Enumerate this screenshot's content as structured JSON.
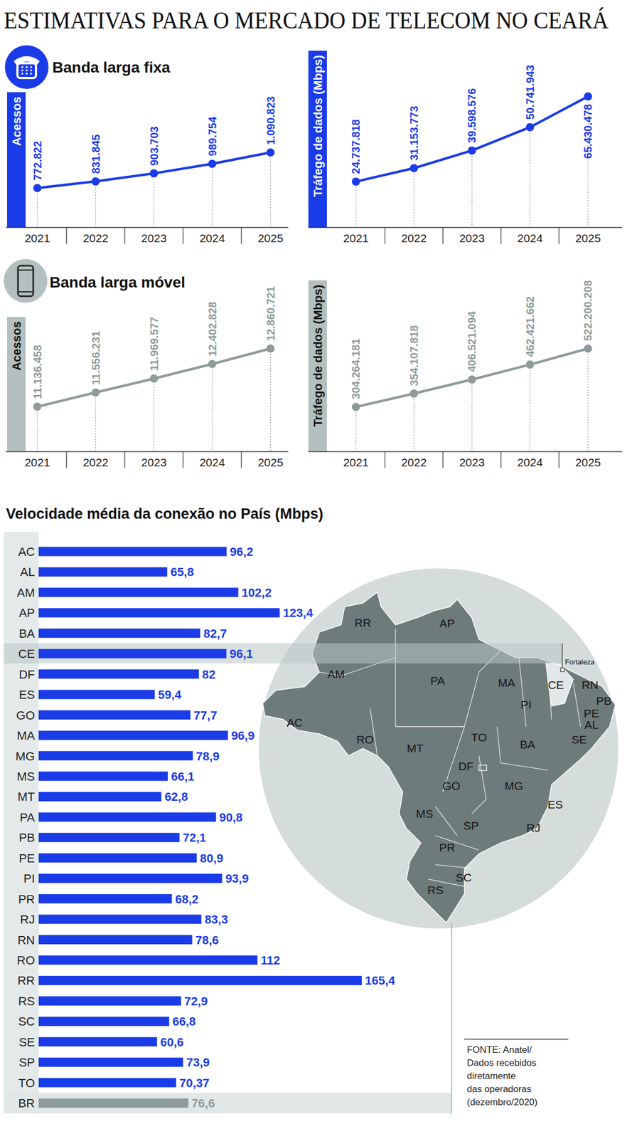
{
  "title": "ESTIMATIVAS PARA O MERCADO DE TELECOM NO CEARÁ",
  "sections": [
    {
      "title": "Banda larga fixa"
    },
    {
      "title": "Banda larga móvel"
    }
  ],
  "chart_data": [
    {
      "type": "line",
      "ylabel": "Acessos",
      "categories": [
        "2021",
        "2022",
        "2023",
        "2024",
        "2025"
      ],
      "values": [
        772822,
        831845,
        903703,
        989754,
        1090823
      ],
      "value_labels": [
        "772.822",
        "831.845",
        "903.703",
        "989.754",
        "1.090.823"
      ],
      "color": "#1a3be8",
      "ylim": [
        420000,
        1630000
      ],
      "data_labels": true,
      "tick_labels": "x",
      "marker": "circle"
    },
    {
      "type": "line",
      "ylabel": "Tráfego de dados (Mbps)",
      "categories": [
        "2021",
        "2022",
        "2023",
        "2024",
        "2025"
      ],
      "values": [
        24737818,
        31153773,
        39598576,
        50741943,
        65430478
      ],
      "value_labels": [
        "24.737.818",
        "31.153.773",
        "39.598.576",
        "50.741.943",
        "65.430.478"
      ],
      "color": "#1a3be8",
      "ylim": [
        2800000,
        87300000
      ],
      "data_labels": true,
      "tick_labels": "x",
      "marker": "circle"
    },
    {
      "type": "line",
      "ylabel": "Acessos",
      "categories": [
        "2021",
        "2022",
        "2023",
        "2024",
        "2025"
      ],
      "values": [
        11136458,
        11556231,
        11969577,
        12402828,
        12860721
      ],
      "value_labels": [
        "11.136.458",
        "11.556.231",
        "11.969.577",
        "12.402.828",
        "12.860.721"
      ],
      "color": "#8d9b9a",
      "ylim": [
        9800000,
        13800000
      ],
      "data_labels": true,
      "tick_labels": "x",
      "marker": "circle"
    },
    {
      "type": "line",
      "ylabel": "Tráfego de dados (Mbps)",
      "categories": [
        "2021",
        "2022",
        "2023",
        "2024",
        "2025"
      ],
      "values": [
        304264181,
        354107818,
        406521094,
        462421662,
        522200208
      ],
      "value_labels": [
        "304.264.181",
        "354.107.818",
        "406.521.094",
        "462.421.662",
        "522.200.208"
      ],
      "color": "#8d9b9a",
      "ylim": [
        137000000,
        777000000
      ],
      "data_labels": true,
      "tick_labels": "x",
      "marker": "circle"
    },
    {
      "type": "bar",
      "title": "Velocidade média da conexão no País (Mbps)",
      "orientation": "horizontal",
      "categories": [
        "AC",
        "AL",
        "AM",
        "AP",
        "BA",
        "CE",
        "DF",
        "ES",
        "GO",
        "MA",
        "MG",
        "MS",
        "MT",
        "PA",
        "PB",
        "PE",
        "PI",
        "PR",
        "RJ",
        "RN",
        "RO",
        "RR",
        "RS",
        "SC",
        "SE",
        "SP",
        "TO",
        "BR"
      ],
      "values": [
        96.2,
        65.8,
        102.2,
        123.4,
        82.7,
        96.1,
        82,
        59.4,
        77.7,
        96.9,
        78.9,
        66.1,
        62.8,
        90.8,
        72.1,
        80.9,
        93.9,
        68.2,
        83.3,
        78.6,
        112,
        165.4,
        72.9,
        66.8,
        60.6,
        73.9,
        70.37,
        76.6
      ],
      "value_labels": [
        "96,2",
        "65,8",
        "102,2",
        "123,4",
        "82,7",
        "96,1",
        "82",
        "59,4",
        "77,7",
        "96,9",
        "78,9",
        "66,1",
        "62,8",
        "90,8",
        "72,1",
        "80,9",
        "93,9",
        "68,2",
        "83,3",
        "78,6",
        "112",
        "165,4",
        "72,9",
        "66,8",
        "60,6",
        "73,9",
        "70,37",
        "76,6"
      ],
      "colors": [
        "#1a3be8",
        "#1a3be8",
        "#1a3be8",
        "#1a3be8",
        "#1a3be8",
        "#1a3be8",
        "#1a3be8",
        "#1a3be8",
        "#1a3be8",
        "#1a3be8",
        "#1a3be8",
        "#1a3be8",
        "#1a3be8",
        "#1a3be8",
        "#1a3be8",
        "#1a3be8",
        "#1a3be8",
        "#1a3be8",
        "#1a3be8",
        "#1a3be8",
        "#1a3be8",
        "#1a3be8",
        "#1a3be8",
        "#1a3be8",
        "#1a3be8",
        "#1a3be8",
        "#1a3be8",
        "#8d9b9a"
      ],
      "xlim": [
        0,
        200
      ],
      "data_labels": true,
      "tick_labels": "y"
    }
  ],
  "map": {
    "labels": [
      "RR",
      "AP",
      "AM",
      "PA",
      "MA",
      "PI",
      "CE",
      "RN",
      "PB",
      "PE",
      "AL",
      "SE",
      "AC",
      "RO",
      "MT",
      "TO",
      "BA",
      "DF",
      "GO",
      "MG",
      "ES",
      "MS",
      "SP",
      "RJ",
      "PR",
      "SC",
      "RS"
    ],
    "city": "Fortaleza"
  },
  "source": [
    "FONTE: Anatel/",
    "Dados recebidos",
    "diretamente",
    "das operadoras",
    "(dezembro/2020)"
  ]
}
